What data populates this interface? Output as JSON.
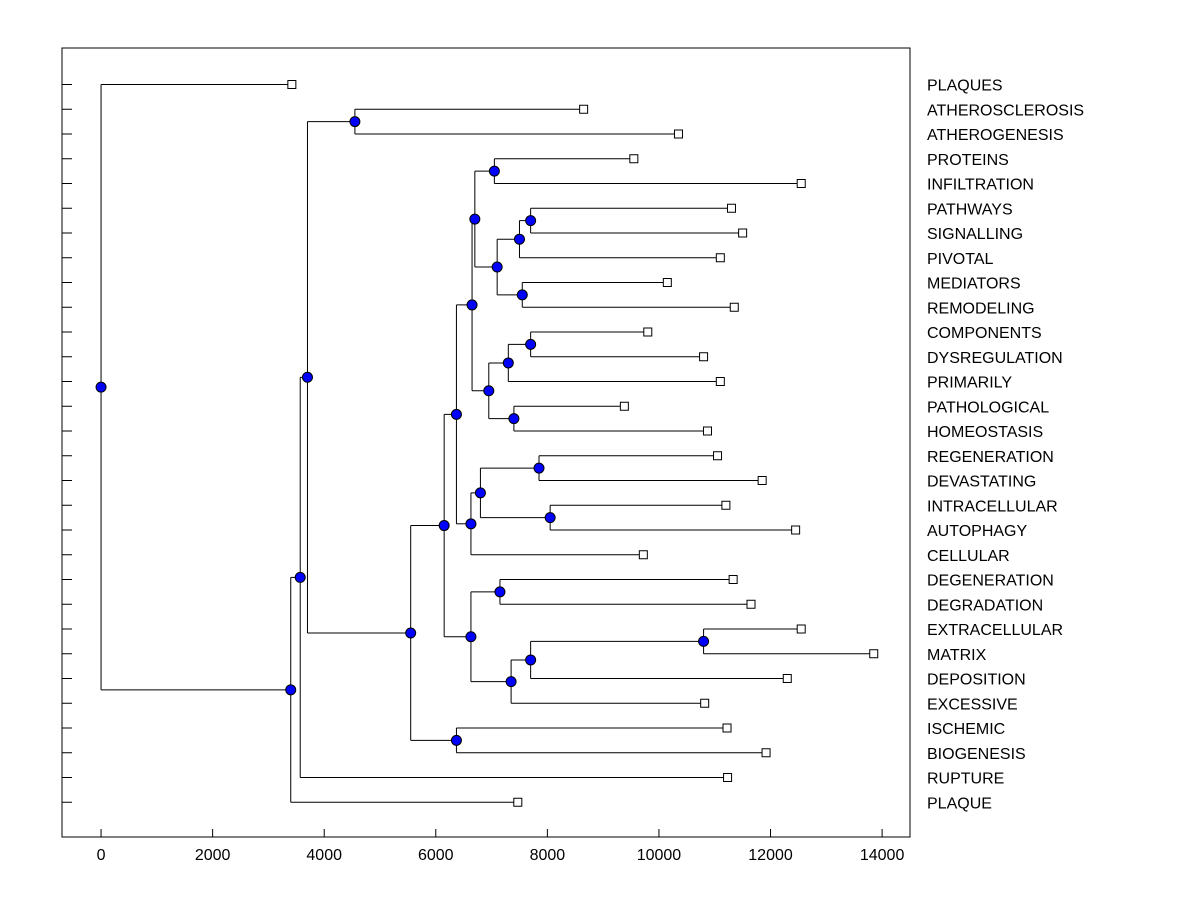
{
  "chart_data": {
    "type": "dendrogram",
    "title": "",
    "xlabel": "",
    "ylabel": "",
    "xlim": [
      -700,
      14500
    ],
    "x_ticks": [
      0,
      2000,
      4000,
      6000,
      8000,
      10000,
      12000,
      14000
    ],
    "x_tick_labels": [
      "0",
      "2000",
      "4000",
      "6000",
      "8000",
      "10000",
      "12000",
      "14000"
    ],
    "leaves": [
      {
        "label": "PLAQUES",
        "x": 3420
      },
      {
        "label": "ATHEROSCLEROSIS",
        "x": 8650
      },
      {
        "label": "ATHEROGENESIS",
        "x": 10350
      },
      {
        "label": "PROTEINS",
        "x": 9550
      },
      {
        "label": "INFILTRATION",
        "x": 12550
      },
      {
        "label": "PATHWAYS",
        "x": 11300
      },
      {
        "label": "SIGNALLING",
        "x": 11500
      },
      {
        "label": "PIVOTAL",
        "x": 11100
      },
      {
        "label": "MEDIATORS",
        "x": 10150
      },
      {
        "label": "REMODELING",
        "x": 11350
      },
      {
        "label": "COMPONENTS",
        "x": 9800
      },
      {
        "label": "DYSREGULATION",
        "x": 10800
      },
      {
        "label": "PRIMARILY",
        "x": 11100
      },
      {
        "label": "PATHOLOGICAL",
        "x": 9380
      },
      {
        "label": "HOMEOSTASIS",
        "x": 10870
      },
      {
        "label": "REGENERATION",
        "x": 11050
      },
      {
        "label": "DEVASTATING",
        "x": 11850
      },
      {
        "label": "INTRACELLULAR",
        "x": 11200
      },
      {
        "label": "AUTOPHAGY",
        "x": 12450
      },
      {
        "label": "CELLULAR",
        "x": 9720
      },
      {
        "label": "DEGENERATION",
        "x": 11330
      },
      {
        "label": "DEGRADATION",
        "x": 11650
      },
      {
        "label": "EXTRACELLULAR",
        "x": 12550
      },
      {
        "label": "MATRIX",
        "x": 13850
      },
      {
        "label": "DEPOSITION",
        "x": 12300
      },
      {
        "label": "EXCESSIVE",
        "x": 10820
      },
      {
        "label": "ISCHEMIC",
        "x": 11220
      },
      {
        "label": "BIOGENESIS",
        "x": 11920
      },
      {
        "label": "RUPTURE",
        "x": 11230
      },
      {
        "label": "PLAQUE",
        "x": 7470
      }
    ],
    "merges": [
      {
        "id": "n1",
        "x": 4550,
        "children": [
          1,
          2
        ]
      },
      {
        "id": "n2",
        "x": 7050,
        "children": [
          3,
          4
        ]
      },
      {
        "id": "n3",
        "x": 7700,
        "children": [
          5,
          6
        ]
      },
      {
        "id": "n4",
        "x": 7500,
        "children": [
          "n3",
          7
        ]
      },
      {
        "id": "n5",
        "x": 7550,
        "children": [
          8,
          9
        ]
      },
      {
        "id": "n6",
        "x": 7100,
        "children": [
          "n4",
          "n5"
        ]
      },
      {
        "id": "n7",
        "x": 6700,
        "children": [
          "n2",
          "n6"
        ]
      },
      {
        "id": "n8",
        "x": 7700,
        "children": [
          10,
          11
        ]
      },
      {
        "id": "n9",
        "x": 7300,
        "children": [
          "n8",
          12
        ]
      },
      {
        "id": "n10",
        "x": 7400,
        "children": [
          13,
          14
        ]
      },
      {
        "id": "n11",
        "x": 6950,
        "children": [
          "n9",
          "n10"
        ]
      },
      {
        "id": "n12",
        "x": 6650,
        "children": [
          "n7",
          "n11"
        ]
      },
      {
        "id": "n13",
        "x": 7850,
        "children": [
          15,
          16
        ]
      },
      {
        "id": "n14",
        "x": 8050,
        "children": [
          17,
          18
        ]
      },
      {
        "id": "n15",
        "x": 6800,
        "children": [
          "n13",
          "n14"
        ]
      },
      {
        "id": "n16",
        "x": 6630,
        "children": [
          "n15",
          19
        ]
      },
      {
        "id": "n17",
        "x": 6370,
        "children": [
          "n12",
          "n16"
        ]
      },
      {
        "id": "n18",
        "x": 7150,
        "children": [
          20,
          21
        ]
      },
      {
        "id": "n19",
        "x": 10800,
        "children": [
          22,
          23
        ]
      },
      {
        "id": "n20",
        "x": 7700,
        "children": [
          "n19",
          24
        ]
      },
      {
        "id": "n21",
        "x": 7350,
        "children": [
          "n20",
          25
        ]
      },
      {
        "id": "n22",
        "x": 6630,
        "children": [
          "n18",
          "n21"
        ]
      },
      {
        "id": "n23",
        "x": 6150,
        "children": [
          "n17",
          "n22"
        ]
      },
      {
        "id": "n24",
        "x": 6370,
        "children": [
          26,
          27
        ]
      },
      {
        "id": "n25",
        "x": 5550,
        "children": [
          "n23",
          "n24"
        ]
      },
      {
        "id": "n26",
        "x": 3700,
        "children": [
          "n1",
          "n25"
        ]
      },
      {
        "id": "n27",
        "x": 3570,
        "children": [
          "n26",
          28
        ]
      },
      {
        "id": "n28",
        "x": 3400,
        "children": [
          "n27",
          29
        ]
      },
      {
        "id": "n29",
        "x": 0,
        "children": [
          0,
          "n28"
        ]
      }
    ],
    "colors": {
      "internal_node": "#0000ff",
      "leaf_node": "#ffffff",
      "line": "#000000",
      "frame": "#000000"
    }
  }
}
